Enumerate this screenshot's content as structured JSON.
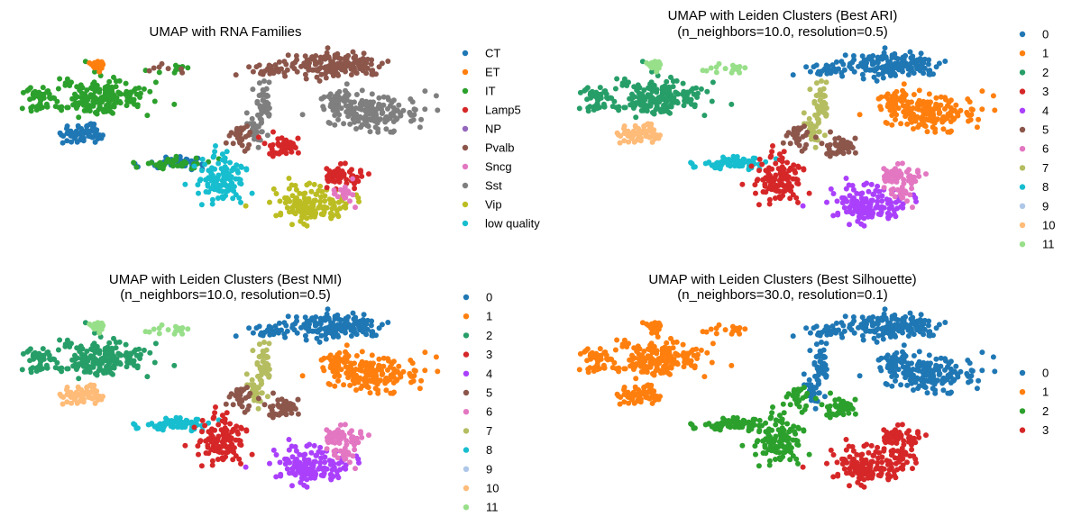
{
  "figure": {
    "background": "#ffffff"
  },
  "chart_data": [
    {
      "type": "scatter",
      "title": "UMAP with RNA Families",
      "subtitle": "",
      "xlabel": "",
      "ylabel": "",
      "grid": false,
      "legend_position": "right",
      "legend": [
        "CT",
        "ET",
        "IT",
        "Lamp5",
        "NP",
        "Pvalb",
        "Sncg",
        "Sst",
        "Vip",
        "low quality"
      ],
      "colors": [
        "#1f77b4",
        "#ff7f0e",
        "#2ca02c",
        "#d62728",
        "#9467bd",
        "#8c564b",
        "#e377c2",
        "#7f7f7f",
        "#bcbd22",
        "#17becf"
      ]
    },
    {
      "type": "scatter",
      "title": "UMAP with Leiden Clusters (Best ARI)",
      "subtitle": "(n_neighbors=10.0, resolution=0.5)",
      "xlabel": "",
      "ylabel": "",
      "grid": false,
      "legend_position": "right",
      "legend": [
        "0",
        "1",
        "2",
        "3",
        "4",
        "5",
        "6",
        "7",
        "8",
        "9",
        "10",
        "11"
      ],
      "colors": [
        "#1f77b4",
        "#ff7f0e",
        "#279e68",
        "#d62728",
        "#aa40fc",
        "#8c564b",
        "#e377c2",
        "#b5bd61",
        "#17becf",
        "#aec7e8",
        "#ffbb78",
        "#98df8a"
      ]
    },
    {
      "type": "scatter",
      "title": "UMAP with Leiden Clusters (Best NMI)",
      "subtitle": "(n_neighbors=10.0, resolution=0.5)",
      "xlabel": "",
      "ylabel": "",
      "grid": false,
      "legend_position": "right",
      "legend": [
        "0",
        "1",
        "2",
        "3",
        "4",
        "5",
        "6",
        "7",
        "8",
        "9",
        "10",
        "11"
      ],
      "colors": [
        "#1f77b4",
        "#ff7f0e",
        "#279e68",
        "#d62728",
        "#aa40fc",
        "#8c564b",
        "#e377c2",
        "#b5bd61",
        "#17becf",
        "#aec7e8",
        "#ffbb78",
        "#98df8a"
      ]
    },
    {
      "type": "scatter",
      "title": "UMAP with Leiden Clusters (Best Silhouette)",
      "subtitle": "(n_neighbors=30.0, resolution=0.1)",
      "xlabel": "",
      "ylabel": "",
      "grid": false,
      "legend_position": "right",
      "legend": [
        "0",
        "1",
        "2",
        "3"
      ],
      "colors": [
        "#1f77b4",
        "#ff7f0e",
        "#2ca02c",
        "#d62728"
      ]
    }
  ]
}
